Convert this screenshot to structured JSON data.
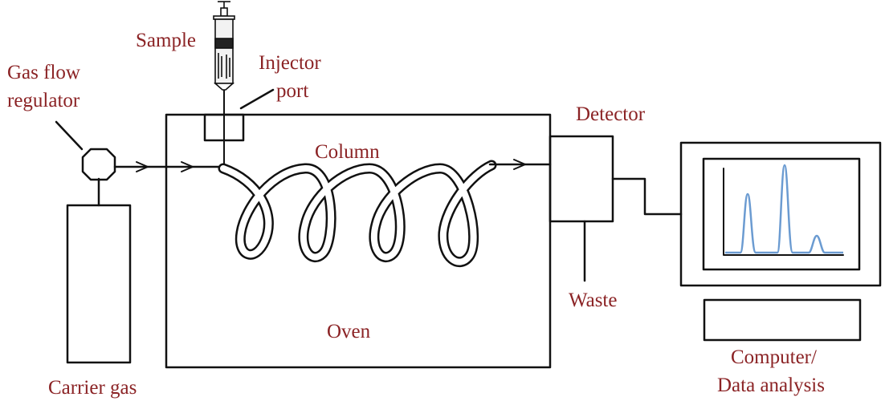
{
  "colors": {
    "label": "#8b2325",
    "line": "#111111",
    "signal": "#6b9bd1"
  },
  "labels": {
    "sample": "Sample",
    "injector_line1": "Injector",
    "injector_line2": "port",
    "gas_flow_line1": "Gas flow",
    "gas_flow_line2": "regulator",
    "detector": "Detector",
    "column": "Column",
    "waste": "Waste",
    "oven": "Oven",
    "carrier_gas": "Carrier gas",
    "computer_line1": "Computer/",
    "computer_line2": "Data analysis"
  },
  "icons": {
    "syringe": "syringe-icon",
    "regulator": "gas-flow-regulator-icon"
  }
}
